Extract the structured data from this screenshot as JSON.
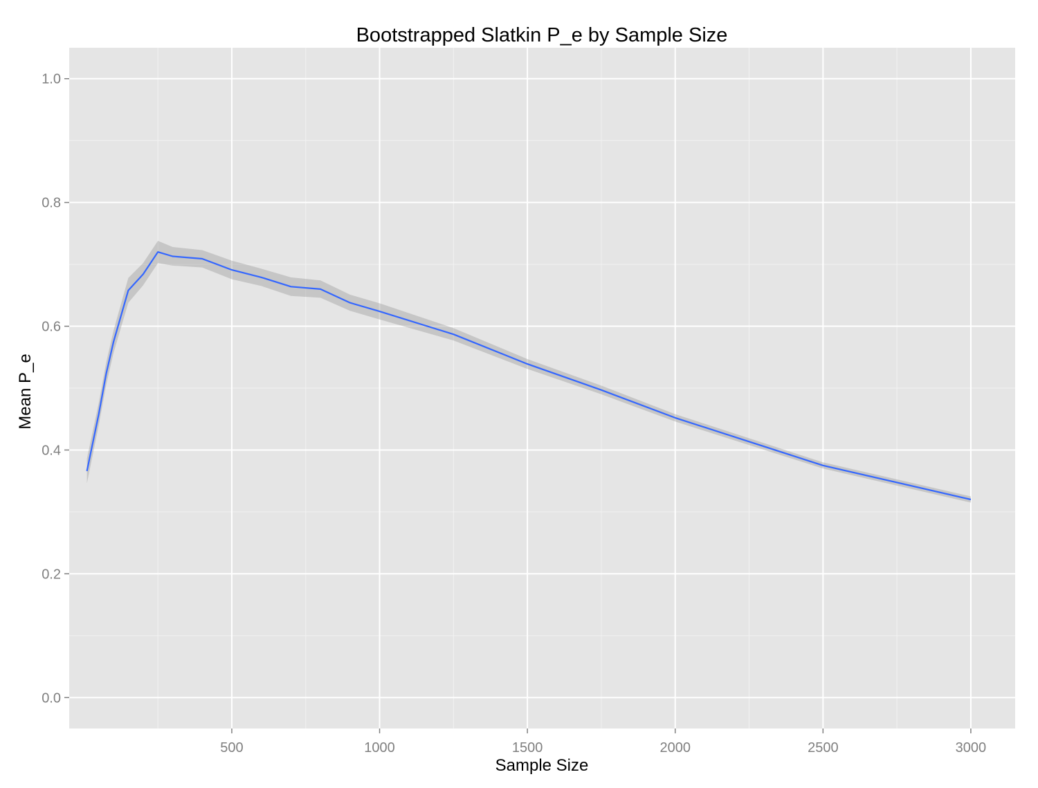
{
  "chart_data": {
    "type": "line",
    "title": "Bootstrapped Slatkin P_e by Sample Size",
    "xlabel": "Sample Size",
    "ylabel": "Mean P_e",
    "xlim": [
      -50,
      3150
    ],
    "ylim": [
      -0.05,
      1.05
    ],
    "x_ticks": [
      500,
      1000,
      1500,
      2000,
      2500,
      3000
    ],
    "x_tick_labels": [
      "500",
      "1000",
      "1500",
      "2000",
      "2500",
      "3000"
    ],
    "x_minor_ticks": [
      250,
      750,
      1250,
      1750,
      2250,
      2750
    ],
    "y_ticks": [
      0.0,
      0.2,
      0.4,
      0.6,
      0.8,
      1.0
    ],
    "y_tick_labels": [
      "0.0",
      "0.2",
      "0.4",
      "0.6",
      "0.8",
      "1.0"
    ],
    "y_minor_ticks": [
      0.1,
      0.3,
      0.5,
      0.7,
      0.9
    ],
    "grid": true,
    "legend": "none",
    "colors": {
      "panel": "#e5e5e5",
      "grid": "#ffffff",
      "line": "#3366ff",
      "ribbon": "#999999",
      "tick_text": "#7f7f7f"
    },
    "series": [
      {
        "x": [
          10,
          50,
          75,
          100,
          150,
          200,
          250,
          300,
          400,
          500,
          600,
          700,
          800,
          900,
          1000,
          1250,
          1500,
          1750,
          2000,
          2500,
          3000
        ],
        "values": [
          0.366,
          0.458,
          0.523,
          0.575,
          0.658,
          0.684,
          0.72,
          0.713,
          0.709,
          0.691,
          0.679,
          0.664,
          0.66,
          0.638,
          0.624,
          0.587,
          0.539,
          0.497,
          0.452,
          0.375,
          0.32
        ],
        "lower": [
          0.346,
          0.44,
          0.505,
          0.557,
          0.638,
          0.666,
          0.702,
          0.698,
          0.695,
          0.676,
          0.665,
          0.649,
          0.646,
          0.625,
          0.611,
          0.577,
          0.531,
          0.49,
          0.446,
          0.37,
          0.315
        ],
        "upper": [
          0.386,
          0.476,
          0.541,
          0.593,
          0.678,
          0.702,
          0.738,
          0.728,
          0.723,
          0.706,
          0.693,
          0.679,
          0.674,
          0.651,
          0.637,
          0.597,
          0.547,
          0.504,
          0.458,
          0.38,
          0.325
        ]
      }
    ]
  }
}
